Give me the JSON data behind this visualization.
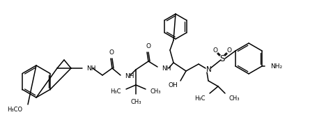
{
  "background_color": "#ffffff",
  "line_color": "#000000",
  "line_width": 1.1,
  "font_size": 6.5,
  "fig_width": 4.56,
  "fig_height": 1.91,
  "dpi": 100,
  "xlim": [
    0,
    456
  ],
  "ylim": [
    0,
    191
  ]
}
